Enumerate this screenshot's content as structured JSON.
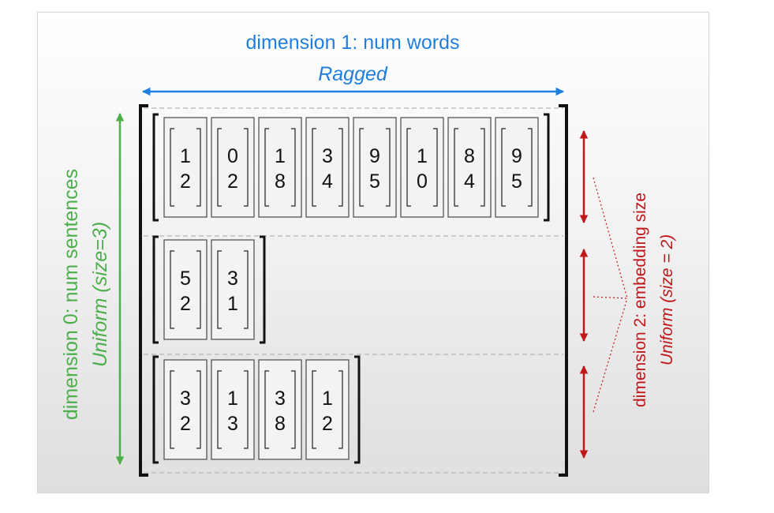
{
  "dim1": {
    "label": "dimension 1: num words",
    "sublabel": "Ragged",
    "color": "#1f7ee0"
  },
  "dim0": {
    "label": "dimension 0: num sentences",
    "sublabel": "Uniform (size=3)",
    "color": "#4caf4c"
  },
  "dim2": {
    "label": "dimension 2: embedding size",
    "sublabel": "Uniform (size = 2)",
    "color": "#c0171b"
  },
  "sentences": [
    {
      "words": [
        [
          1,
          2
        ],
        [
          0,
          2
        ],
        [
          1,
          8
        ],
        [
          3,
          4
        ],
        [
          9,
          5
        ],
        [
          1,
          0
        ],
        [
          8,
          4
        ],
        [
          9,
          5
        ]
      ]
    },
    {
      "words": [
        [
          5,
          2
        ],
        [
          3,
          1
        ]
      ]
    },
    {
      "words": [
        [
          3,
          2
        ],
        [
          1,
          3
        ],
        [
          3,
          8
        ],
        [
          1,
          2
        ]
      ]
    }
  ]
}
